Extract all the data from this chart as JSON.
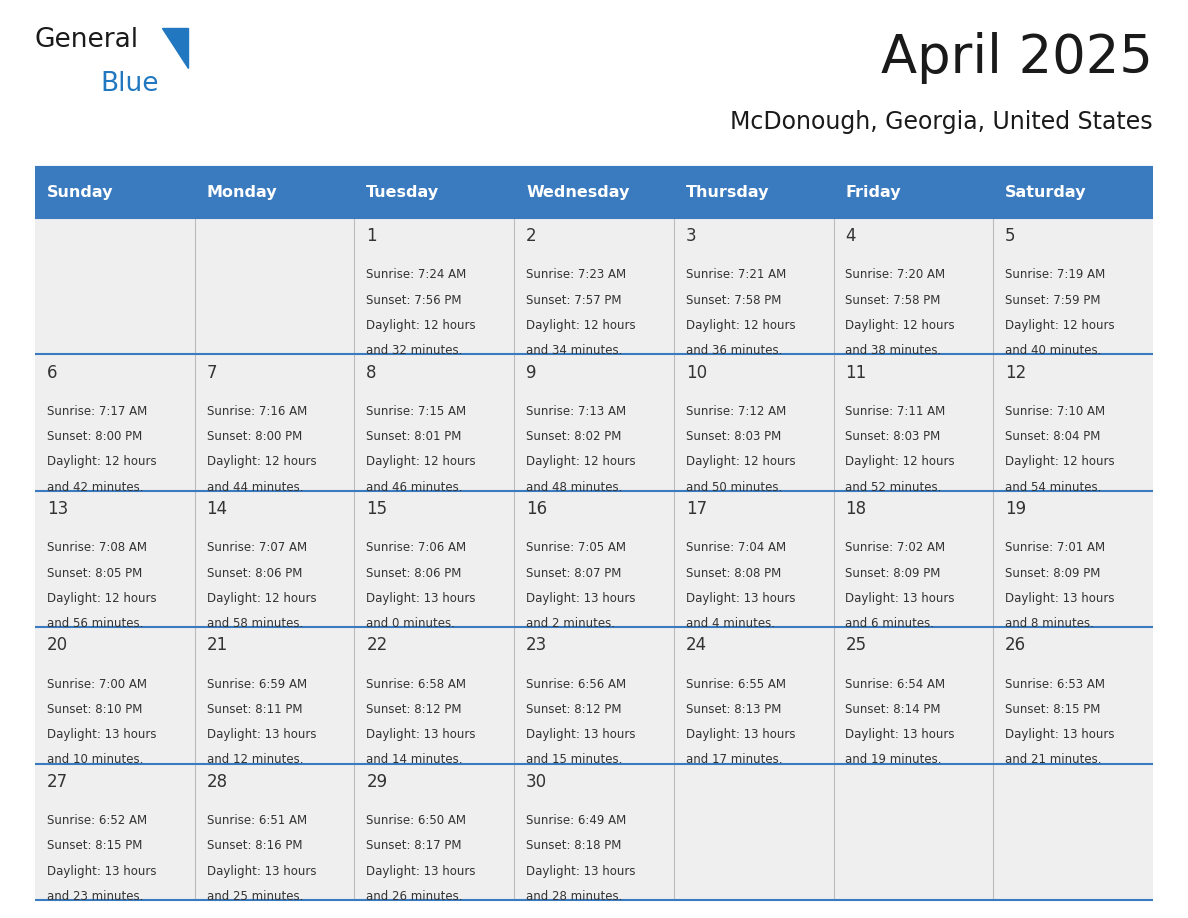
{
  "title": "April 2025",
  "subtitle": "McDonough, Georgia, United States",
  "header_bg_color": "#3a7abf",
  "header_text_color": "#ffffff",
  "cell_bg_color_light": "#efefef",
  "cell_bg_color_white": "#ffffff",
  "border_color": "#3a7abf",
  "day_names": [
    "Sunday",
    "Monday",
    "Tuesday",
    "Wednesday",
    "Thursday",
    "Friday",
    "Saturday"
  ],
  "title_color": "#1a1a1a",
  "subtitle_color": "#1a1a1a",
  "text_color": "#333333",
  "logo_black": "#1a1a1a",
  "logo_blue": "#2278c0",
  "logo_triangle": "#2278c0",
  "days": [
    {
      "row": 0,
      "col": 0,
      "num": "",
      "sunrise": "",
      "sunset": "",
      "daylight": ""
    },
    {
      "row": 0,
      "col": 1,
      "num": "",
      "sunrise": "",
      "sunset": "",
      "daylight": ""
    },
    {
      "row": 0,
      "col": 2,
      "num": "1",
      "sunrise": "7:24 AM",
      "sunset": "7:56 PM",
      "daylight": "12 hours\nand 32 minutes."
    },
    {
      "row": 0,
      "col": 3,
      "num": "2",
      "sunrise": "7:23 AM",
      "sunset": "7:57 PM",
      "daylight": "12 hours\nand 34 minutes."
    },
    {
      "row": 0,
      "col": 4,
      "num": "3",
      "sunrise": "7:21 AM",
      "sunset": "7:58 PM",
      "daylight": "12 hours\nand 36 minutes."
    },
    {
      "row": 0,
      "col": 5,
      "num": "4",
      "sunrise": "7:20 AM",
      "sunset": "7:58 PM",
      "daylight": "12 hours\nand 38 minutes."
    },
    {
      "row": 0,
      "col": 6,
      "num": "5",
      "sunrise": "7:19 AM",
      "sunset": "7:59 PM",
      "daylight": "12 hours\nand 40 minutes."
    },
    {
      "row": 1,
      "col": 0,
      "num": "6",
      "sunrise": "7:17 AM",
      "sunset": "8:00 PM",
      "daylight": "12 hours\nand 42 minutes."
    },
    {
      "row": 1,
      "col": 1,
      "num": "7",
      "sunrise": "7:16 AM",
      "sunset": "8:00 PM",
      "daylight": "12 hours\nand 44 minutes."
    },
    {
      "row": 1,
      "col": 2,
      "num": "8",
      "sunrise": "7:15 AM",
      "sunset": "8:01 PM",
      "daylight": "12 hours\nand 46 minutes."
    },
    {
      "row": 1,
      "col": 3,
      "num": "9",
      "sunrise": "7:13 AM",
      "sunset": "8:02 PM",
      "daylight": "12 hours\nand 48 minutes."
    },
    {
      "row": 1,
      "col": 4,
      "num": "10",
      "sunrise": "7:12 AM",
      "sunset": "8:03 PM",
      "daylight": "12 hours\nand 50 minutes."
    },
    {
      "row": 1,
      "col": 5,
      "num": "11",
      "sunrise": "7:11 AM",
      "sunset": "8:03 PM",
      "daylight": "12 hours\nand 52 minutes."
    },
    {
      "row": 1,
      "col": 6,
      "num": "12",
      "sunrise": "7:10 AM",
      "sunset": "8:04 PM",
      "daylight": "12 hours\nand 54 minutes."
    },
    {
      "row": 2,
      "col": 0,
      "num": "13",
      "sunrise": "7:08 AM",
      "sunset": "8:05 PM",
      "daylight": "12 hours\nand 56 minutes."
    },
    {
      "row": 2,
      "col": 1,
      "num": "14",
      "sunrise": "7:07 AM",
      "sunset": "8:06 PM",
      "daylight": "12 hours\nand 58 minutes."
    },
    {
      "row": 2,
      "col": 2,
      "num": "15",
      "sunrise": "7:06 AM",
      "sunset": "8:06 PM",
      "daylight": "13 hours\nand 0 minutes."
    },
    {
      "row": 2,
      "col": 3,
      "num": "16",
      "sunrise": "7:05 AM",
      "sunset": "8:07 PM",
      "daylight": "13 hours\nand 2 minutes."
    },
    {
      "row": 2,
      "col": 4,
      "num": "17",
      "sunrise": "7:04 AM",
      "sunset": "8:08 PM",
      "daylight": "13 hours\nand 4 minutes."
    },
    {
      "row": 2,
      "col": 5,
      "num": "18",
      "sunrise": "7:02 AM",
      "sunset": "8:09 PM",
      "daylight": "13 hours\nand 6 minutes."
    },
    {
      "row": 2,
      "col": 6,
      "num": "19",
      "sunrise": "7:01 AM",
      "sunset": "8:09 PM",
      "daylight": "13 hours\nand 8 minutes."
    },
    {
      "row": 3,
      "col": 0,
      "num": "20",
      "sunrise": "7:00 AM",
      "sunset": "8:10 PM",
      "daylight": "13 hours\nand 10 minutes."
    },
    {
      "row": 3,
      "col": 1,
      "num": "21",
      "sunrise": "6:59 AM",
      "sunset": "8:11 PM",
      "daylight": "13 hours\nand 12 minutes."
    },
    {
      "row": 3,
      "col": 2,
      "num": "22",
      "sunrise": "6:58 AM",
      "sunset": "8:12 PM",
      "daylight": "13 hours\nand 14 minutes."
    },
    {
      "row": 3,
      "col": 3,
      "num": "23",
      "sunrise": "6:56 AM",
      "sunset": "8:12 PM",
      "daylight": "13 hours\nand 15 minutes."
    },
    {
      "row": 3,
      "col": 4,
      "num": "24",
      "sunrise": "6:55 AM",
      "sunset": "8:13 PM",
      "daylight": "13 hours\nand 17 minutes."
    },
    {
      "row": 3,
      "col": 5,
      "num": "25",
      "sunrise": "6:54 AM",
      "sunset": "8:14 PM",
      "daylight": "13 hours\nand 19 minutes."
    },
    {
      "row": 3,
      "col": 6,
      "num": "26",
      "sunrise": "6:53 AM",
      "sunset": "8:15 PM",
      "daylight": "13 hours\nand 21 minutes."
    },
    {
      "row": 4,
      "col": 0,
      "num": "27",
      "sunrise": "6:52 AM",
      "sunset": "8:15 PM",
      "daylight": "13 hours\nand 23 minutes."
    },
    {
      "row": 4,
      "col": 1,
      "num": "28",
      "sunrise": "6:51 AM",
      "sunset": "8:16 PM",
      "daylight": "13 hours\nand 25 minutes."
    },
    {
      "row": 4,
      "col": 2,
      "num": "29",
      "sunrise": "6:50 AM",
      "sunset": "8:17 PM",
      "daylight": "13 hours\nand 26 minutes."
    },
    {
      "row": 4,
      "col": 3,
      "num": "30",
      "sunrise": "6:49 AM",
      "sunset": "8:18 PM",
      "daylight": "13 hours\nand 28 minutes."
    },
    {
      "row": 4,
      "col": 4,
      "num": "",
      "sunrise": "",
      "sunset": "",
      "daylight": ""
    },
    {
      "row": 4,
      "col": 5,
      "num": "",
      "sunrise": "",
      "sunset": "",
      "daylight": ""
    },
    {
      "row": 4,
      "col": 6,
      "num": "",
      "sunrise": "",
      "sunset": "",
      "daylight": ""
    }
  ]
}
